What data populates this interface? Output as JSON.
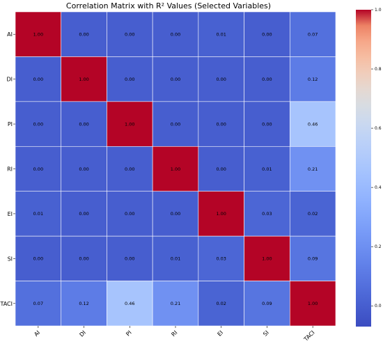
{
  "chart_data": {
    "type": "heatmap",
    "title": "Correlation Matrix with R² Values (Selected Variables)",
    "row_labels": [
      "AI",
      "DI",
      "PI",
      "RI",
      "EI",
      "SI",
      "TACI"
    ],
    "col_labels": [
      "AI",
      "DI",
      "PI",
      "RI",
      "EI",
      "SI",
      "TACI"
    ],
    "values": [
      [
        1.0,
        0.0,
        0.0,
        0.0,
        0.01,
        0.0,
        0.07
      ],
      [
        0.0,
        1.0,
        0.0,
        0.0,
        0.0,
        0.0,
        0.12
      ],
      [
        0.0,
        0.0,
        1.0,
        0.0,
        0.0,
        0.0,
        0.46
      ],
      [
        0.0,
        0.0,
        0.0,
        1.0,
        0.0,
        0.01,
        0.21
      ],
      [
        0.01,
        0.0,
        0.0,
        0.0,
        1.0,
        0.03,
        0.02
      ],
      [
        0.0,
        0.0,
        0.0,
        0.01,
        0.03,
        1.0,
        0.09
      ],
      [
        0.07,
        0.12,
        0.46,
        0.21,
        0.02,
        0.09,
        1.0
      ]
    ],
    "display_text": [
      [
        "1.00",
        "0.00",
        "0.00",
        "0.00",
        "0.01",
        "0.00",
        "0.07"
      ],
      [
        "0.00",
        "1.00",
        "0.00",
        "0.00",
        "0.00",
        "0.00",
        "0.12"
      ],
      [
        "0.00",
        "0.00",
        "1.00",
        "0.00",
        "0.00",
        "0.00",
        "0.46"
      ],
      [
        "0.00",
        "0.00",
        "0.00",
        "1.00",
        "0.00",
        "0.01",
        "0.21"
      ],
      [
        "0.01",
        "0.00",
        "0.00",
        "0.00",
        "1.00",
        "0.03",
        "0.02"
      ],
      [
        "0.00",
        "0.00",
        "0.00",
        "0.01",
        "0.03",
        "1.00",
        "0.09"
      ],
      [
        "0.07",
        "0.12",
        "0.46",
        "0.21",
        "0.02",
        "0.09",
        "1.00"
      ]
    ],
    "colormap": "coolwarm",
    "vmin": -0.07,
    "vmax": 1.0,
    "colorbar_ticks": [
      0.0,
      0.2,
      0.4,
      0.6,
      0.8,
      1.0
    ],
    "colorbar_tick_labels": [
      "0.0",
      "0.2",
      "0.4",
      "0.6",
      "0.8",
      "1.0"
    ],
    "x_tick_rotation_deg": 45,
    "grid_line_color": "#ffffff"
  }
}
